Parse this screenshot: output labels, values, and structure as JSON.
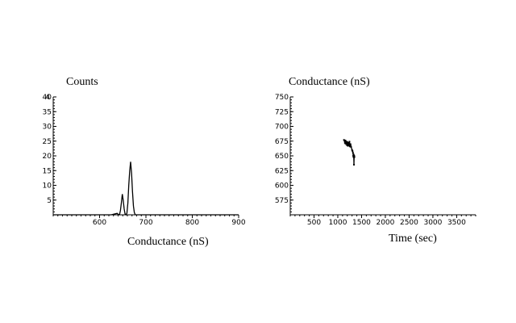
{
  "chart_data": [
    {
      "type": "line",
      "title": "",
      "ylabel": "Counts",
      "xlabel": "Conductance (nS)",
      "xlim": [
        500,
        900
      ],
      "ylim": [
        0,
        40
      ],
      "x_ticks": [
        600,
        700,
        800,
        900
      ],
      "y_ticks": [
        5,
        10,
        15,
        20,
        25,
        30,
        35,
        40
      ],
      "y_ticks_extra_label": "4",
      "grid": false,
      "series": [
        {
          "x": [
            500,
            625,
            633,
            638,
            640,
            643,
            645,
            647,
            649,
            651,
            653,
            655,
            657,
            659,
            661,
            663,
            665,
            667,
            669,
            671,
            673,
            675,
            677,
            680,
            900
          ],
          "values": [
            0,
            0,
            0.3,
            0.5,
            0.2,
            0,
            1.5,
            4,
            7,
            5,
            2,
            0.3,
            0,
            0.5,
            4,
            10,
            15,
            18,
            14,
            8,
            3,
            0.8,
            0,
            0,
            0
          ]
        }
      ]
    },
    {
      "type": "line",
      "title": "",
      "ylabel": "Conductance (nS)",
      "xlabel": "Time (sec)",
      "xlim": [
        0,
        3900
      ],
      "ylim": [
        550,
        750
      ],
      "x_ticks": [
        500,
        1000,
        1500,
        2000,
        2500,
        3000,
        3500
      ],
      "y_ticks": [
        575,
        600,
        625,
        650,
        675,
        700,
        725,
        750
      ],
      "grid": false,
      "series": [
        {
          "x": [
            1130,
            1150,
            1160,
            1175,
            1185,
            1195,
            1205,
            1215,
            1225,
            1235,
            1245,
            1255,
            1265,
            1270,
            1280,
            1300,
            1310,
            1320,
            1325,
            1330,
            1335,
            1340,
            1345,
            1350
          ],
          "values": [
            677,
            672,
            676,
            670,
            674,
            668,
            673,
            667,
            672,
            668,
            674,
            666,
            670,
            668,
            665,
            660,
            658,
            655,
            650,
            648,
            652,
            635,
            650,
            648
          ]
        }
      ]
    }
  ]
}
